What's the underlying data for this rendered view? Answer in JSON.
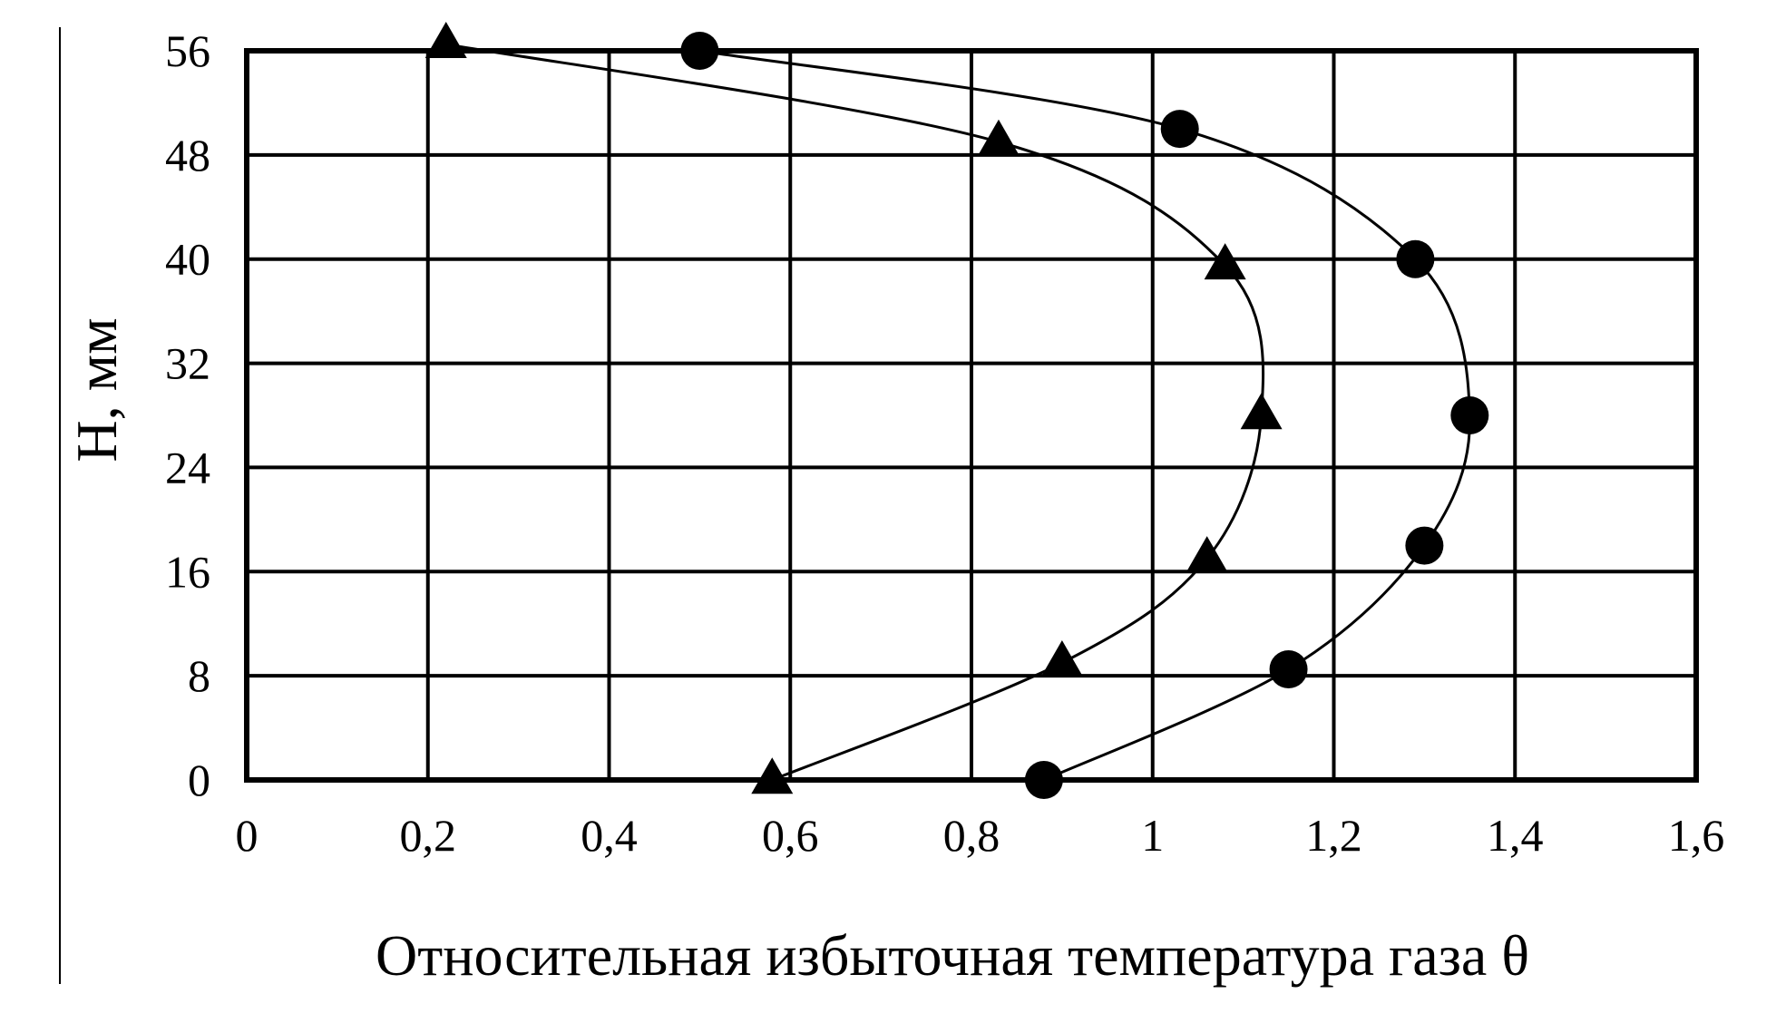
{
  "chart_data": {
    "type": "line",
    "title": "",
    "xlabel": "Относительная избыточная температура газа θ",
    "ylabel": "H, мм",
    "xlim": [
      0,
      1.6
    ],
    "ylim": [
      0,
      56
    ],
    "x_ticks": [
      "0",
      "0,2",
      "0,4",
      "0,6",
      "0,8",
      "1",
      "1,2",
      "1,4",
      "1,6"
    ],
    "x_tick_values": [
      0,
      0.2,
      0.4,
      0.6,
      0.8,
      1.0,
      1.2,
      1.4,
      1.6
    ],
    "y_ticks": [
      "0",
      "8",
      "16",
      "24",
      "32",
      "40",
      "48",
      "56"
    ],
    "y_tick_values": [
      0,
      8,
      16,
      24,
      32,
      40,
      48,
      56
    ],
    "grid": true,
    "series": [
      {
        "marker": "circle",
        "points": [
          [
            0.88,
            0
          ],
          [
            1.15,
            8.5
          ],
          [
            1.3,
            18
          ],
          [
            1.35,
            28
          ],
          [
            1.29,
            40
          ],
          [
            1.03,
            50
          ],
          [
            0.5,
            56
          ]
        ]
      },
      {
        "marker": "triangle",
        "points": [
          [
            0.58,
            0
          ],
          [
            0.9,
            9
          ],
          [
            1.06,
            17
          ],
          [
            1.12,
            28
          ],
          [
            1.08,
            39.5
          ],
          [
            0.83,
            49
          ],
          [
            0.22,
            56.5
          ]
        ]
      }
    ]
  }
}
